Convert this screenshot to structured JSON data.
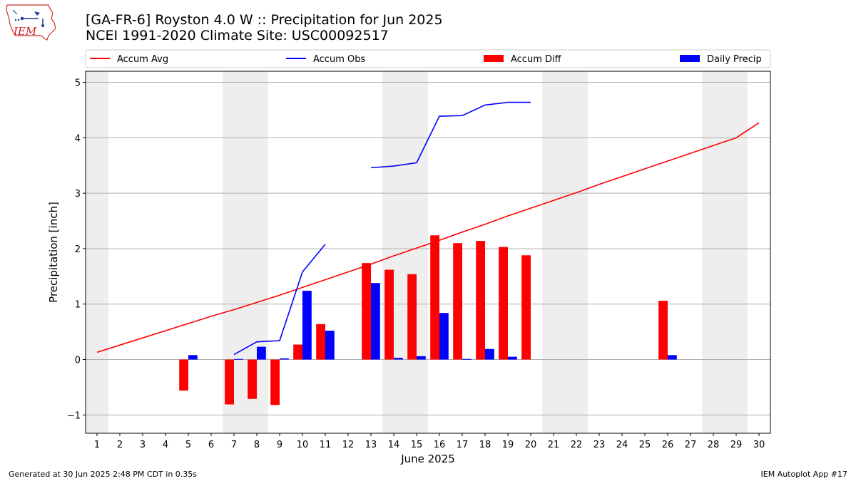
{
  "header": {
    "title_line1": "[GA-FR-6] Royston 4.0 W :: Precipitation for Jun 2025",
    "title_line2": "NCEI 1991-2020 Climate Site: USC00092517",
    "logo_text": "IEM"
  },
  "footer": {
    "generated": "Generated at 30 Jun 2025 2:48 PM CDT in 0.35s",
    "app": "IEM Autoplot App #17"
  },
  "colors": {
    "accum_avg": "#ff0000",
    "accum_obs": "#0000ff",
    "accum_diff": "#ff0000",
    "daily_precip": "#0000ff",
    "weekend_shade": "#eeeeee",
    "grid": "#b0b0b0"
  },
  "chart_data": {
    "type": "bar",
    "xlabel": "June 2025",
    "ylabel": "Precipitation [inch]",
    "xlim": [
      0.5,
      30.5
    ],
    "ylim": [
      -1.33,
      5.2
    ],
    "x_ticks": [
      1,
      2,
      3,
      4,
      5,
      6,
      7,
      8,
      9,
      10,
      11,
      12,
      13,
      14,
      15,
      16,
      17,
      18,
      19,
      20,
      21,
      22,
      23,
      24,
      25,
      26,
      27,
      28,
      29,
      30
    ],
    "y_ticks": [
      -1,
      0,
      1,
      2,
      3,
      4,
      5
    ],
    "y_tick_labels": [
      "−1",
      "0",
      "1",
      "2",
      "3",
      "4",
      "5"
    ],
    "grid": "horizontal",
    "legend": {
      "position": "top",
      "entries": [
        {
          "label": "Accum Avg",
          "kind": "line",
          "color": "#ff0000"
        },
        {
          "label": "Accum Obs",
          "kind": "line",
          "color": "#0000ff"
        },
        {
          "label": "Accum Diff",
          "kind": "bar",
          "color": "#ff0000"
        },
        {
          "label": "Daily Precip",
          "kind": "bar",
          "color": "#0000ff"
        }
      ]
    },
    "shaded_days": [
      [
        0.5,
        1.5
      ],
      [
        6.5,
        8.5
      ],
      [
        13.5,
        15.5
      ],
      [
        20.5,
        22.5
      ],
      [
        27.5,
        29.5
      ]
    ],
    "series": [
      {
        "name": "Accum Avg",
        "type": "line",
        "color": "#ff0000",
        "x": [
          1,
          2,
          3,
          4,
          5,
          6,
          7,
          8,
          9,
          10,
          11,
          12,
          13,
          14,
          15,
          16,
          17,
          18,
          19,
          20,
          21,
          22,
          23,
          24,
          25,
          26,
          27,
          28,
          29,
          30
        ],
        "values": [
          0.13,
          0.26,
          0.39,
          0.52,
          0.65,
          0.78,
          0.9,
          1.03,
          1.16,
          1.3,
          1.44,
          1.58,
          1.72,
          1.87,
          2.01,
          2.15,
          2.3,
          2.44,
          2.59,
          2.73,
          2.87,
          3.01,
          3.16,
          3.3,
          3.44,
          3.58,
          3.72,
          3.86,
          4.0,
          4.27
        ]
      },
      {
        "name": "Accum Obs",
        "type": "line",
        "color": "#0000ff",
        "segments": [
          {
            "x": [
              7,
              8,
              9,
              10,
              11
            ],
            "values": [
              0.09,
              0.32,
              0.34,
              1.58,
              2.08
            ]
          },
          {
            "x": [
              13,
              14,
              15,
              16,
              17,
              18,
              19,
              20
            ],
            "values": [
              3.46,
              3.49,
              3.55,
              4.39,
              4.4,
              4.59,
              4.64,
              4.64
            ]
          }
        ]
      },
      {
        "name": "Accum Diff",
        "type": "bar",
        "color": "#ff0000",
        "x": [
          5,
          7,
          8,
          9,
          10,
          11,
          13,
          14,
          15,
          16,
          17,
          18,
          19,
          20,
          26
        ],
        "values": [
          -0.56,
          -0.81,
          -0.71,
          -0.82,
          0.27,
          0.64,
          1.74,
          1.62,
          1.54,
          2.24,
          2.1,
          2.14,
          2.03,
          1.88,
          1.06
        ]
      },
      {
        "name": "Daily Precip",
        "type": "bar",
        "color": "#0000ff",
        "x": [
          5,
          7,
          8,
          9,
          10,
          11,
          13,
          14,
          15,
          16,
          17,
          18,
          19,
          26
        ],
        "values": [
          0.08,
          0.01,
          0.23,
          0.02,
          1.24,
          0.52,
          1.38,
          0.03,
          0.06,
          0.84,
          0.01,
          0.19,
          0.05,
          0.08
        ]
      }
    ]
  }
}
